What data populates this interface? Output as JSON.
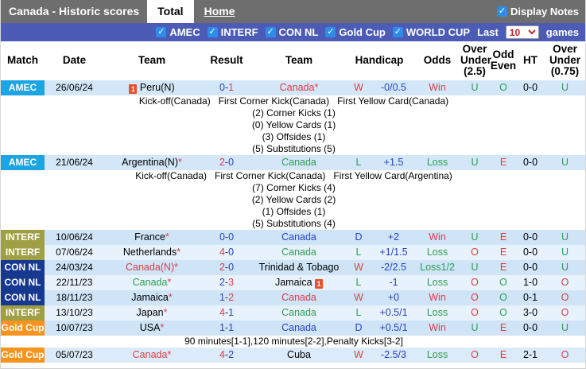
{
  "topbar": {
    "title": "Canada - Historic scores",
    "tabs": [
      {
        "label": "Total",
        "active": true
      },
      {
        "label": "Home",
        "active": false
      }
    ],
    "display_notes_label": "Display Notes",
    "display_notes_checked": true
  },
  "filterbar": {
    "competitions": [
      {
        "label": "AMEC",
        "checked": true
      },
      {
        "label": "INTERF",
        "checked": true
      },
      {
        "label": "CON NL",
        "checked": true
      },
      {
        "label": "Gold Cup",
        "checked": true
      },
      {
        "label": "WORLD CUP",
        "checked": true
      }
    ],
    "last_label": "Last",
    "games_select_value": "10",
    "games_label": "games"
  },
  "colors": {
    "win_red": "#dc3c46",
    "loss_green": "#2d9e4f",
    "draw_blue": "#2742c6",
    "amec": "#1ca4e3",
    "interf": "#9f9f45",
    "connl": "#16388f",
    "goldcup": "#f7941e"
  },
  "table": {
    "headers": [
      "Match",
      "Date",
      "Team",
      "Result",
      "Team",
      "Handicap",
      "Odds",
      "Over Under (2.5)",
      "Odd Even",
      "HT",
      "Over Under (0.75)"
    ],
    "matches": [
      {
        "comp": "AMEC",
        "comp_bg": "#1ca4e3",
        "date": "26/06/24",
        "row_bg": "#d3e7f9",
        "home": {
          "name": "Peru(N)",
          "star": false,
          "color": "#000000",
          "icon": "red-card",
          "icon_pos": "before",
          "icon_count": "1"
        },
        "score": {
          "home": "0",
          "away": "1",
          "home_color": "#2742c6",
          "away_color": "#dc3c46"
        },
        "away": {
          "name": "Canada",
          "star": true,
          "color": "#dc3c46"
        },
        "wld": {
          "text": "W",
          "color": "#dc3c46"
        },
        "handicap": "-0/0.5",
        "odds": {
          "text": "Win",
          "color": "#dc3c46"
        },
        "ou25": {
          "text": "U",
          "color": "#2d9e4f"
        },
        "oddeven": {
          "text": "O",
          "color": "#2d9e4f"
        },
        "ht": "0-0",
        "ou075": {
          "text": "U",
          "color": "#2d9e4f"
        },
        "notes": [
          "Kick-off(Canada)   First Corner Kick(Canada)   First Yellow Card(Canada)",
          "(2) Corner Kicks (1)",
          "(0) Yellow Cards (1)",
          "(3) Offsides (1)",
          "(5) Substitutions (5)"
        ]
      },
      {
        "comp": "AMEC",
        "comp_bg": "#1ca4e3",
        "date": "21/06/24",
        "row_bg": "#d3e7f9",
        "home": {
          "name": "Argentina(N)",
          "star": true,
          "color": "#000000"
        },
        "score": {
          "home": "2",
          "away": "0",
          "home_color": "#dc3c46",
          "away_color": "#2742c6"
        },
        "away": {
          "name": "Canada",
          "star": false,
          "color": "#2d9e4f"
        },
        "wld": {
          "text": "L",
          "color": "#2d9e4f"
        },
        "handicap": "+1.5",
        "odds": {
          "text": "Loss",
          "color": "#2d9e4f"
        },
        "ou25": {
          "text": "U",
          "color": "#2d9e4f"
        },
        "oddeven": {
          "text": "E",
          "color": "#dc3c46"
        },
        "ht": "0-0",
        "ou075": {
          "text": "U",
          "color": "#2d9e4f"
        },
        "notes": [
          "Kick-off(Canada)   First Corner Kick(Canada)   First Yellow Card(Argentina)",
          "(7) Corner Kicks (4)",
          "(2) Yellow Cards (2)",
          "(1) Offsides (1)",
          "(5) Substitutions (4)"
        ]
      },
      {
        "comp": "INTERF",
        "comp_bg": "#9f9f45",
        "date": "10/06/24",
        "row_bg": "#cfe4f7",
        "home": {
          "name": "France",
          "star": true,
          "color": "#000000"
        },
        "score": {
          "home": "0",
          "away": "0",
          "home_color": "#2742c6",
          "away_color": "#2742c6"
        },
        "away": {
          "name": "Canada",
          "star": false,
          "color": "#2742c6"
        },
        "wld": {
          "text": "D",
          "color": "#2742c6"
        },
        "handicap": "+2",
        "odds": {
          "text": "Win",
          "color": "#dc3c46"
        },
        "ou25": {
          "text": "U",
          "color": "#2d9e4f"
        },
        "oddeven": {
          "text": "E",
          "color": "#dc3c46"
        },
        "ht": "0-0",
        "ou075": {
          "text": "U",
          "color": "#2d9e4f"
        },
        "notes": []
      },
      {
        "comp": "INTERF",
        "comp_bg": "#9f9f45",
        "date": "07/06/24",
        "row_bg": "#e8f2fd",
        "home": {
          "name": "Netherlands",
          "star": true,
          "color": "#000000"
        },
        "score": {
          "home": "4",
          "away": "0",
          "home_color": "#dc3c46",
          "away_color": "#2742c6"
        },
        "away": {
          "name": "Canada",
          "star": false,
          "color": "#2d9e4f"
        },
        "wld": {
          "text": "L",
          "color": "#2d9e4f"
        },
        "handicap": "+1/1.5",
        "odds": {
          "text": "Loss",
          "color": "#2d9e4f"
        },
        "ou25": {
          "text": "O",
          "color": "#dc3c46"
        },
        "oddeven": {
          "text": "E",
          "color": "#dc3c46"
        },
        "ht": "0-0",
        "ou075": {
          "text": "U",
          "color": "#2d9e4f"
        },
        "notes": []
      },
      {
        "comp": "CON NL",
        "comp_bg": "#16388f",
        "date": "24/03/24",
        "row_bg": "#cfe4f7",
        "home": {
          "name": "Canada(N)",
          "star": true,
          "color": "#dc3c46"
        },
        "score": {
          "home": "2",
          "away": "0",
          "home_color": "#dc3c46",
          "away_color": "#2742c6"
        },
        "away": {
          "name": "Trinidad & Tobago",
          "star": false,
          "color": "#000000"
        },
        "wld": {
          "text": "W",
          "color": "#dc3c46"
        },
        "handicap": "-2/2.5",
        "odds": {
          "text": "Loss1/2",
          "color": "#2d9e4f"
        },
        "ou25": {
          "text": "U",
          "color": "#2d9e4f"
        },
        "oddeven": {
          "text": "E",
          "color": "#dc3c46"
        },
        "ht": "0-0",
        "ou075": {
          "text": "U",
          "color": "#2d9e4f"
        },
        "notes": []
      },
      {
        "comp": "CON NL",
        "comp_bg": "#16388f",
        "date": "22/11/23",
        "row_bg": "#e8f2fd",
        "home": {
          "name": "Canada",
          "star": true,
          "color": "#2d9e4f"
        },
        "score": {
          "home": "2",
          "away": "3",
          "home_color": "#2742c6",
          "away_color": "#dc3c46"
        },
        "away": {
          "name": "Jamaica",
          "star": false,
          "color": "#000000",
          "icon": "red-card",
          "icon_pos": "after",
          "icon_count": "1"
        },
        "wld": {
          "text": "L",
          "color": "#2d9e4f"
        },
        "handicap": "-1",
        "odds": {
          "text": "Loss",
          "color": "#2d9e4f"
        },
        "ou25": {
          "text": "O",
          "color": "#dc3c46"
        },
        "oddeven": {
          "text": "O",
          "color": "#2d9e4f"
        },
        "ht": "1-0",
        "ou075": {
          "text": "O",
          "color": "#dc3c46"
        },
        "notes": []
      },
      {
        "comp": "CON NL",
        "comp_bg": "#16388f",
        "date": "18/11/23",
        "row_bg": "#cfe4f7",
        "home": {
          "name": "Jamaica",
          "star": true,
          "color": "#000000"
        },
        "score": {
          "home": "1",
          "away": "2",
          "home_color": "#2742c6",
          "away_color": "#dc3c46"
        },
        "away": {
          "name": "Canada",
          "star": false,
          "color": "#dc3c46"
        },
        "wld": {
          "text": "W",
          "color": "#dc3c46"
        },
        "handicap": "+0",
        "odds": {
          "text": "Win",
          "color": "#dc3c46"
        },
        "ou25": {
          "text": "O",
          "color": "#dc3c46"
        },
        "oddeven": {
          "text": "O",
          "color": "#2d9e4f"
        },
        "ht": "0-1",
        "ou075": {
          "text": "O",
          "color": "#dc3c46"
        },
        "notes": []
      },
      {
        "comp": "INTERF",
        "comp_bg": "#9f9f45",
        "date": "13/10/23",
        "row_bg": "#e8f2fd",
        "home": {
          "name": "Japan",
          "star": true,
          "color": "#000000"
        },
        "score": {
          "home": "4",
          "away": "1",
          "home_color": "#dc3c46",
          "away_color": "#2742c6"
        },
        "away": {
          "name": "Canada",
          "star": false,
          "color": "#2d9e4f"
        },
        "wld": {
          "text": "L",
          "color": "#2d9e4f"
        },
        "handicap": "+0.5/1",
        "odds": {
          "text": "Loss",
          "color": "#2d9e4f"
        },
        "ou25": {
          "text": "O",
          "color": "#dc3c46"
        },
        "oddeven": {
          "text": "O",
          "color": "#2d9e4f"
        },
        "ht": "3-0",
        "ou075": {
          "text": "O",
          "color": "#dc3c46"
        },
        "notes": []
      },
      {
        "comp": "Gold Cup",
        "comp_bg": "#f7941e",
        "date": "10/07/23",
        "row_bg": "#cfe4f7",
        "home": {
          "name": "USA",
          "star": true,
          "color": "#000000"
        },
        "score": {
          "home": "1",
          "away": "1",
          "home_color": "#2742c6",
          "away_color": "#2742c6"
        },
        "away": {
          "name": "Canada",
          "star": false,
          "color": "#2742c6"
        },
        "wld": {
          "text": "D",
          "color": "#2742c6"
        },
        "handicap": "+0.5/1",
        "odds": {
          "text": "Win",
          "color": "#dc3c46"
        },
        "ou25": {
          "text": "U",
          "color": "#2d9e4f"
        },
        "oddeven": {
          "text": "E",
          "color": "#dc3c46"
        },
        "ht": "0-0",
        "ou075": {
          "text": "U",
          "color": "#2d9e4f"
        },
        "notes": [
          "90 minutes[1-1],120 minutes[2-2],Penalty Kicks[3-2]"
        ]
      },
      {
        "comp": "Gold Cup",
        "comp_bg": "#f7941e",
        "date": "05/07/23",
        "row_bg": "#dcebfa",
        "home": {
          "name": "Canada",
          "star": true,
          "color": "#dc3c46"
        },
        "score": {
          "home": "4",
          "away": "2",
          "home_color": "#dc3c46",
          "away_color": "#2742c6"
        },
        "away": {
          "name": "Cuba",
          "star": false,
          "color": "#000000"
        },
        "wld": {
          "text": "W",
          "color": "#dc3c46"
        },
        "handicap": "-2.5/3",
        "odds": {
          "text": "Loss",
          "color": "#2d9e4f"
        },
        "ou25": {
          "text": "O",
          "color": "#dc3c46"
        },
        "oddeven": {
          "text": "E",
          "color": "#dc3c46"
        },
        "ht": "2-1",
        "ou075": {
          "text": "O",
          "color": "#dc3c46"
        },
        "notes": []
      }
    ]
  }
}
